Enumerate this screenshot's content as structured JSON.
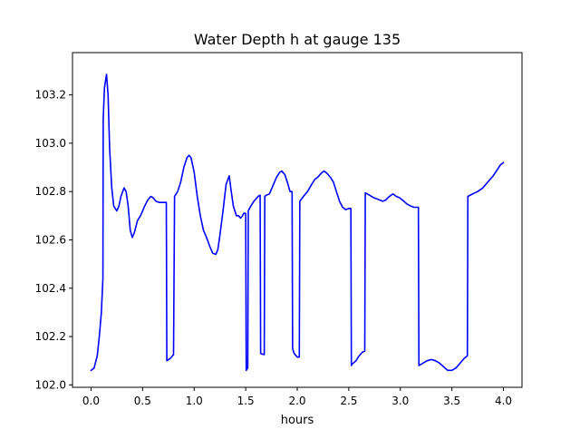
{
  "chart_data": {
    "type": "line",
    "title": "Water Depth h at gauge 135",
    "xlabel": "hours",
    "ylabel": "",
    "xlim": [
      -0.18,
      4.18
    ],
    "ylim": [
      101.99,
      103.375
    ],
    "xticks": [
      0.0,
      0.5,
      1.0,
      1.5,
      2.0,
      2.5,
      3.0,
      3.5,
      4.0
    ],
    "xtick_labels": [
      "0.0",
      "0.5",
      "1.0",
      "1.5",
      "2.0",
      "2.5",
      "3.0",
      "3.5",
      "4.0"
    ],
    "yticks": [
      102.0,
      102.2,
      102.4,
      102.6,
      102.8,
      103.0,
      103.2
    ],
    "ytick_labels": [
      "102.0",
      "102.2",
      "102.4",
      "102.6",
      "102.8",
      "103.0",
      "103.2"
    ],
    "grid": false,
    "legend": "none",
    "series": [
      {
        "color": "#0000ff",
        "x": [
          0.0,
          0.03,
          0.06,
          0.08,
          0.1,
          0.115,
          0.118,
          0.13,
          0.15,
          0.165,
          0.18,
          0.2,
          0.22,
          0.25,
          0.27,
          0.29,
          0.32,
          0.34,
          0.36,
          0.38,
          0.4,
          0.42,
          0.45,
          0.48,
          0.5,
          0.52,
          0.55,
          0.58,
          0.6,
          0.63,
          0.66,
          0.7,
          0.73,
          0.735,
          0.77,
          0.8,
          0.81,
          0.84,
          0.87,
          0.9,
          0.93,
          0.95,
          0.97,
          1.0,
          1.03,
          1.06,
          1.09,
          1.12,
          1.15,
          1.18,
          1.21,
          1.23,
          1.25,
          1.28,
          1.31,
          1.34,
          1.36,
          1.38,
          1.41,
          1.43,
          1.45,
          1.47,
          1.48,
          1.5,
          1.505,
          1.52,
          1.525,
          1.55,
          1.58,
          1.62,
          1.64,
          1.645,
          1.68,
          1.685,
          1.7,
          1.73,
          1.76,
          1.8,
          1.83,
          1.85,
          1.88,
          1.91,
          1.93,
          1.95,
          1.955,
          1.97,
          2.0,
          2.02,
          2.025,
          2.06,
          2.1,
          2.14,
          2.17,
          2.2,
          2.23,
          2.26,
          2.29,
          2.32,
          2.35,
          2.38,
          2.41,
          2.44,
          2.47,
          2.5,
          2.52,
          2.525,
          2.53,
          2.57,
          2.6,
          2.63,
          2.655,
          2.66,
          2.7,
          2.74,
          2.77,
          2.8,
          2.83,
          2.86,
          2.88,
          2.91,
          2.93,
          2.96,
          2.99,
          3.02,
          3.06,
          3.1,
          3.13,
          3.16,
          3.175,
          3.18,
          3.22,
          3.26,
          3.3,
          3.34,
          3.38,
          3.42,
          3.46,
          3.5,
          3.54,
          3.58,
          3.62,
          3.65,
          3.655,
          3.7,
          3.75,
          3.8,
          3.85,
          3.9,
          3.94,
          3.97,
          4.0
        ],
        "y": [
          102.06,
          102.07,
          102.12,
          102.2,
          102.3,
          102.44,
          103.1,
          103.23,
          103.285,
          103.2,
          102.98,
          102.82,
          102.74,
          102.72,
          102.74,
          102.78,
          102.815,
          102.8,
          102.74,
          102.64,
          102.61,
          102.63,
          102.68,
          102.7,
          102.72,
          102.74,
          102.765,
          102.78,
          102.775,
          102.76,
          102.755,
          102.755,
          102.755,
          102.1,
          102.11,
          102.125,
          102.78,
          102.8,
          102.84,
          102.9,
          102.94,
          102.95,
          102.94,
          102.88,
          102.78,
          102.7,
          102.64,
          102.61,
          102.575,
          102.545,
          102.54,
          102.56,
          102.62,
          102.72,
          102.83,
          102.865,
          102.8,
          102.74,
          102.7,
          102.7,
          102.69,
          102.7,
          102.71,
          102.71,
          102.06,
          102.07,
          102.72,
          102.74,
          102.76,
          102.78,
          102.785,
          102.13,
          102.125,
          102.78,
          102.785,
          102.79,
          102.82,
          102.86,
          102.88,
          102.885,
          102.87,
          102.83,
          102.8,
          102.8,
          102.15,
          102.13,
          102.115,
          102.115,
          102.76,
          102.78,
          102.8,
          102.83,
          102.85,
          102.86,
          102.875,
          102.885,
          102.875,
          102.86,
          102.84,
          102.8,
          102.76,
          102.735,
          102.725,
          102.73,
          102.73,
          102.08,
          102.085,
          102.1,
          102.12,
          102.135,
          102.14,
          102.795,
          102.785,
          102.775,
          102.77,
          102.765,
          102.76,
          102.765,
          102.775,
          102.785,
          102.79,
          102.78,
          102.775,
          102.765,
          102.75,
          102.74,
          102.735,
          102.735,
          102.735,
          102.08,
          102.09,
          102.1,
          102.105,
          102.1,
          102.09,
          102.075,
          102.06,
          102.06,
          102.07,
          102.09,
          102.11,
          102.12,
          102.78,
          102.79,
          102.8,
          102.815,
          102.84,
          102.865,
          102.89,
          102.91,
          102.92
        ]
      }
    ]
  }
}
